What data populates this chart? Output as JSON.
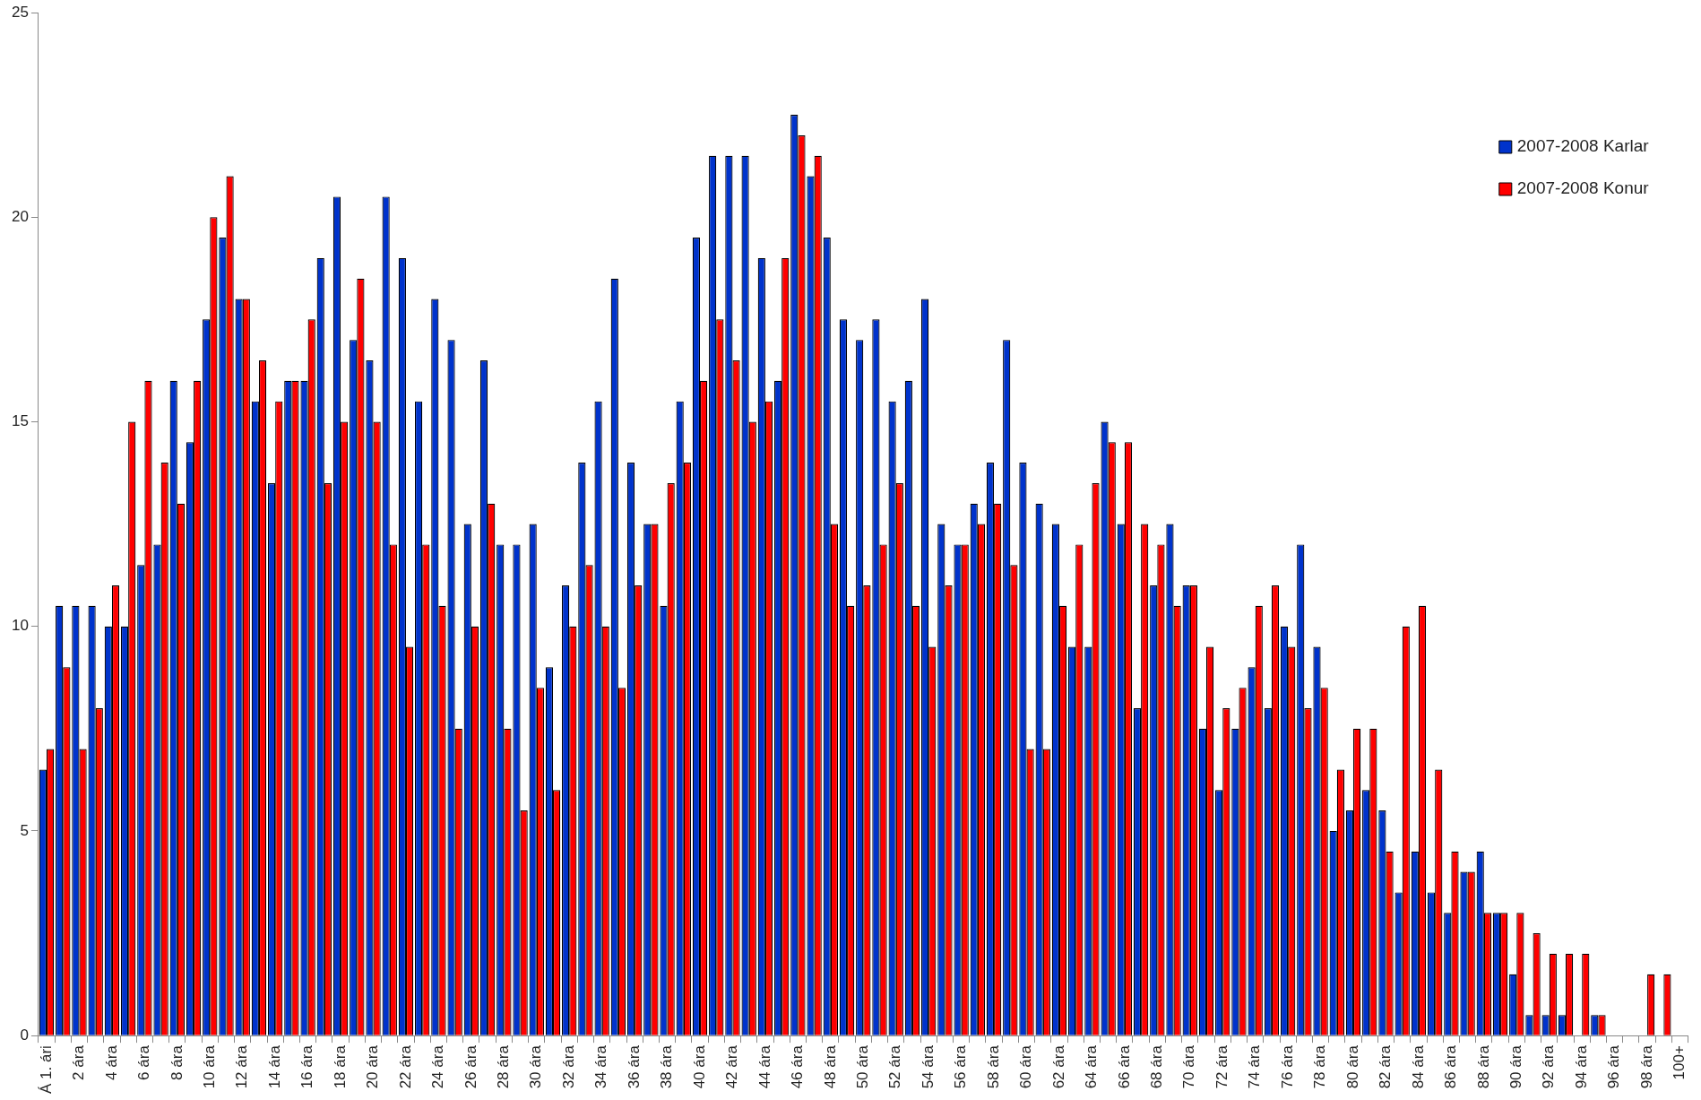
{
  "chart_data": {
    "type": "bar",
    "categories": [
      "Á 1. ári",
      null,
      "2 ára",
      null,
      "4 ára",
      null,
      "6 ára",
      null,
      "8 ára",
      null,
      "10 ára",
      null,
      "12 ára",
      null,
      "14 ára",
      null,
      "16 ára",
      null,
      "18 ára",
      null,
      "20 ára",
      null,
      "22 ára",
      null,
      "24 ára",
      null,
      "26 ára",
      null,
      "28 ára",
      null,
      "30 ára",
      null,
      "32 ára",
      null,
      "34 ára",
      null,
      "36 ára",
      null,
      "38 ára",
      null,
      "40 ára",
      null,
      "42 ára",
      null,
      "44 ára",
      null,
      "46 ára",
      null,
      "48 ára",
      null,
      "50 ára",
      null,
      "52 ára",
      null,
      "54 ára",
      null,
      "56 ára",
      null,
      "58 ára",
      null,
      "60 ára",
      null,
      "62 ára",
      null,
      "64 ára",
      null,
      "66 ára",
      null,
      "68 ára",
      null,
      "70 ára",
      null,
      "72 ára",
      null,
      "74 ára",
      null,
      "76 ára",
      null,
      "78 ára",
      null,
      "80 ára",
      null,
      "82 ára",
      null,
      "84 ára",
      null,
      "86 ára",
      null,
      "88 ára",
      null,
      "90 ára",
      null,
      "92 ára",
      null,
      "94 ára",
      null,
      "96 ára",
      null,
      "98 ára",
      null,
      "100+"
    ],
    "series": [
      {
        "name": "2007-2008 Karlar",
        "color": "#0033cc",
        "values": [
          6.5,
          10.5,
          10.5,
          10.5,
          10,
          10,
          11.5,
          12,
          16,
          14.5,
          17.5,
          19.5,
          18,
          15.5,
          13.5,
          16,
          16,
          19,
          20.5,
          17,
          16.5,
          20.5,
          19,
          15.5,
          18,
          17,
          12.5,
          16.5,
          12,
          12,
          12.5,
          9,
          11,
          14,
          15.5,
          18.5,
          14,
          12.5,
          10.5,
          15.5,
          19.5,
          21.5,
          21.5,
          21.5,
          19,
          16,
          22.5,
          21,
          19.5,
          17.5,
          17,
          17.5,
          15.5,
          16,
          18,
          12.5,
          12,
          13,
          14,
          17,
          14,
          13,
          12.5,
          9.5,
          9.5,
          15,
          12.5,
          8,
          11,
          12.5,
          11,
          7.5,
          6,
          7.5,
          9,
          8,
          10,
          12,
          9.5,
          5,
          5.5,
          6,
          5.5,
          3.5,
          4.5,
          3.5,
          3,
          4,
          4.5,
          3,
          1.5,
          0.5,
          0.5,
          0.5,
          0,
          0.5,
          0,
          0,
          0,
          0,
          0
        ]
      },
      {
        "name": "2007-2008 Konur",
        "color": "#ff0000",
        "values": [
          7,
          9,
          7,
          8,
          11,
          15,
          16,
          14,
          13,
          16,
          20,
          21,
          18,
          16.5,
          15.5,
          16,
          17.5,
          13.5,
          15,
          18.5,
          15,
          12,
          9.5,
          12,
          10.5,
          7.5,
          10,
          13,
          7.5,
          5.5,
          8.5,
          6,
          10,
          11.5,
          10,
          8.5,
          11,
          12.5,
          13.5,
          14,
          16,
          17.5,
          16.5,
          15,
          15.5,
          19,
          22,
          21.5,
          12.5,
          10.5,
          11,
          12,
          13.5,
          10.5,
          9.5,
          11,
          12,
          12.5,
          13,
          11.5,
          7,
          7,
          10.5,
          12,
          13.5,
          14.5,
          14.5,
          12.5,
          12,
          10.5,
          11,
          9.5,
          8,
          8.5,
          10.5,
          11,
          9.5,
          8,
          8.5,
          6.5,
          7.5,
          7.5,
          4.5,
          10,
          10.5,
          6.5,
          4.5,
          4,
          3,
          3,
          3,
          2.5,
          2,
          2,
          2,
          0.5,
          0,
          0,
          1.5,
          1.5,
          0
        ]
      }
    ],
    "ylim": [
      0,
      25
    ],
    "yticks": [
      0,
      5,
      10,
      15,
      20,
      25
    ],
    "grid": false,
    "legend": "top right"
  }
}
